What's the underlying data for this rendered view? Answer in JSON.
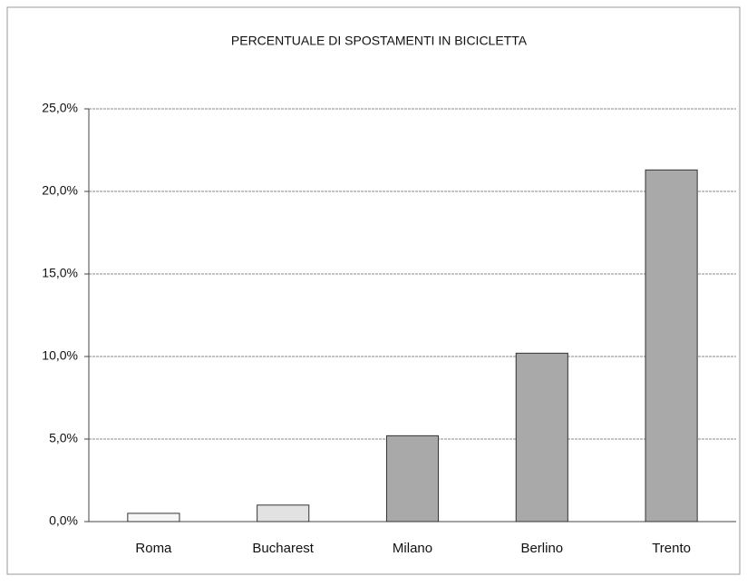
{
  "chart_data": {
    "type": "bar",
    "title": "PERCENTUALE DI SPOSTAMENTI IN BICICLETTA",
    "categories": [
      "Roma",
      "Bucharest",
      "Milano",
      "Berlino",
      "Trento"
    ],
    "values": [
      0.5,
      1.0,
      5.2,
      10.2,
      21.3
    ],
    "colors": [
      "#f6f6f6",
      "#e2e2e2",
      "#a9a9a9",
      "#a9a9a9",
      "#a9a9a9"
    ],
    "ylim": [
      0,
      25
    ],
    "yticks": [
      {
        "value": 0,
        "label": "0,0%"
      },
      {
        "value": 5,
        "label": "5,0%"
      },
      {
        "value": 10,
        "label": "10,0%"
      },
      {
        "value": 15,
        "label": "15,0%"
      },
      {
        "value": 20,
        "label": "20,0%"
      },
      {
        "value": 25,
        "label": "25,0%"
      }
    ],
    "grid": true
  }
}
